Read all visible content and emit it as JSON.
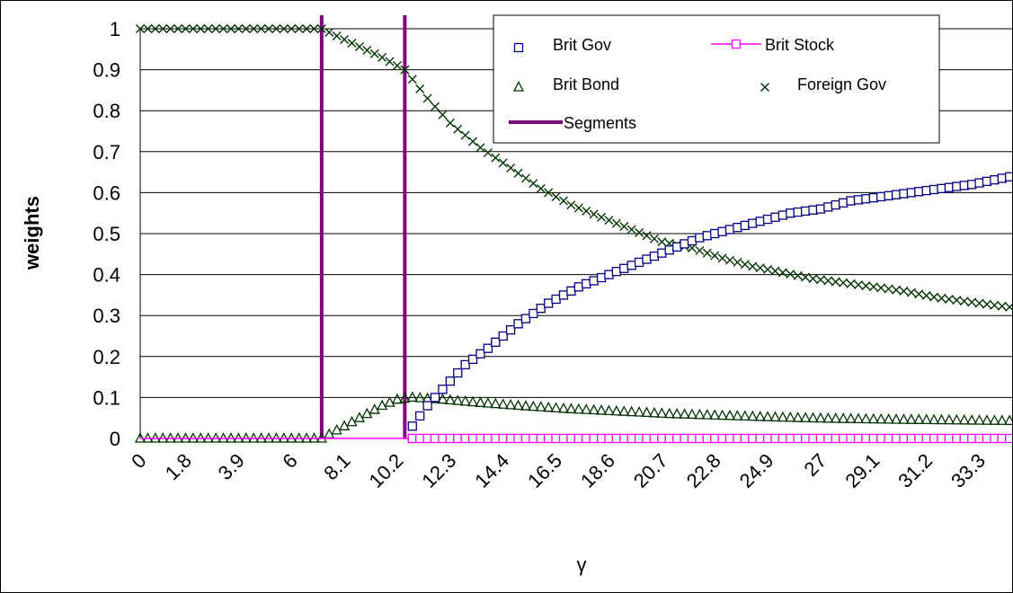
{
  "chart_data": {
    "type": "scatter",
    "xlabel": "γ",
    "ylabel": "weights",
    "x": {
      "min": 0,
      "max": 34.6,
      "step": 0.3
    },
    "x_tick_labels": [
      "0",
      "1.8",
      "3.9",
      "6",
      "8.1",
      "10.2",
      "12.3",
      "14.4",
      "16.5",
      "18.6",
      "20.7",
      "22.8",
      "24.9",
      "27",
      "29.1",
      "31.2",
      "33.3"
    ],
    "ylim": [
      0,
      1
    ],
    "y_tick_labels": [
      "0",
      "0.1",
      "0.2",
      "0.3",
      "0.4",
      "0.5",
      "0.6",
      "0.7",
      "0.8",
      "0.9",
      "1"
    ],
    "grid": "horizontal",
    "legend_position": "top-right",
    "segments_x": [
      7.2,
      10.5
    ],
    "series": [
      {
        "name": "Brit Gov",
        "color": "#000080",
        "marker": "square",
        "points": [
          [
            0,
            0
          ],
          [
            10.5,
            0
          ],
          [
            10.8,
            0.03
          ],
          [
            11.4,
            0.08
          ],
          [
            12.0,
            0.12
          ],
          [
            12.9,
            0.18
          ],
          [
            13.8,
            0.22
          ],
          [
            15.0,
            0.28
          ],
          [
            16.2,
            0.33
          ],
          [
            17.4,
            0.37
          ],
          [
            18.6,
            0.4
          ],
          [
            19.8,
            0.43
          ],
          [
            21.0,
            0.46
          ],
          [
            22.2,
            0.49
          ],
          [
            23.4,
            0.51
          ],
          [
            24.6,
            0.53
          ],
          [
            25.8,
            0.55
          ],
          [
            27.0,
            0.56
          ],
          [
            28.2,
            0.58
          ],
          [
            29.4,
            0.59
          ],
          [
            30.6,
            0.6
          ],
          [
            31.8,
            0.61
          ],
          [
            33.0,
            0.62
          ],
          [
            34.6,
            0.64
          ]
        ]
      },
      {
        "name": "Brit Stock",
        "color": "#FF00FF",
        "marker": "square-line",
        "points": [
          [
            0,
            0
          ],
          [
            34.6,
            0
          ]
        ]
      },
      {
        "name": "Brit Bond",
        "color": "#003300",
        "marker": "triangle",
        "points": [
          [
            0,
            0
          ],
          [
            7.2,
            0
          ],
          [
            7.8,
            0.02
          ],
          [
            8.4,
            0.04
          ],
          [
            9.0,
            0.06
          ],
          [
            9.6,
            0.08
          ],
          [
            10.2,
            0.095
          ],
          [
            10.8,
            0.1
          ],
          [
            12.0,
            0.095
          ],
          [
            13.5,
            0.087
          ],
          [
            15.0,
            0.08
          ],
          [
            17.0,
            0.072
          ],
          [
            19.0,
            0.066
          ],
          [
            21.0,
            0.06
          ],
          [
            23.0,
            0.056
          ],
          [
            25.0,
            0.052
          ],
          [
            27.0,
            0.049
          ],
          [
            30.0,
            0.046
          ],
          [
            34.6,
            0.043
          ]
        ]
      },
      {
        "name": "Foreign Gov",
        "color": "#003300",
        "marker": "x",
        "points": [
          [
            0,
            1
          ],
          [
            7.2,
            1
          ],
          [
            8.4,
            0.965
          ],
          [
            9.6,
            0.93
          ],
          [
            10.5,
            0.9
          ],
          [
            11.4,
            0.83
          ],
          [
            12.3,
            0.77
          ],
          [
            13.5,
            0.71
          ],
          [
            14.7,
            0.66
          ],
          [
            15.9,
            0.61
          ],
          [
            17.1,
            0.57
          ],
          [
            18.3,
            0.54
          ],
          [
            19.5,
            0.51
          ],
          [
            20.7,
            0.48
          ],
          [
            21.9,
            0.465
          ],
          [
            23.1,
            0.44
          ],
          [
            24.3,
            0.42
          ],
          [
            25.5,
            0.405
          ],
          [
            26.7,
            0.39
          ],
          [
            27.9,
            0.38
          ],
          [
            29.1,
            0.37
          ],
          [
            30.3,
            0.36
          ],
          [
            31.5,
            0.345
          ],
          [
            32.7,
            0.335
          ],
          [
            33.9,
            0.325
          ],
          [
            34.6,
            0.32
          ]
        ]
      }
    ],
    "legend": {
      "segments_label": "Segments",
      "segments_color": "#800080"
    }
  }
}
